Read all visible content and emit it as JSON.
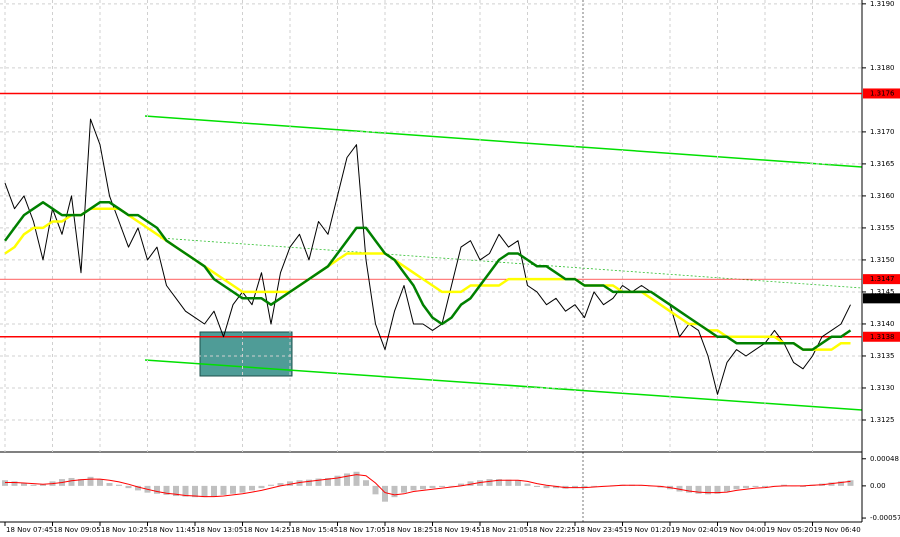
{
  "chart_data": [
    {
      "type": "line",
      "categories": [
        "18 Nov 07:45",
        null,
        null,
        null,
        null,
        "18 Nov 09:05",
        null,
        null,
        null,
        null,
        "18 Nov 10:25",
        null,
        null,
        null,
        null,
        "18 Nov 11:45",
        null,
        null,
        null,
        null,
        "18 Nov 13:05",
        null,
        null,
        null,
        null,
        "18 Nov 14:25",
        null,
        null,
        null,
        null,
        "18 Nov 15:45",
        null,
        null,
        null,
        null,
        "18 Nov 17:05",
        null,
        null,
        null,
        null,
        "18 Nov 18:25",
        null,
        null,
        null,
        null,
        "18 Nov 19:45",
        null,
        null,
        null,
        null,
        "18 Nov 21:05",
        null,
        null,
        null,
        null,
        "18 Nov 22:25",
        null,
        null,
        null,
        null,
        "18 Nov 23:45",
        null,
        null,
        null,
        null,
        "19 Nov 01:20",
        null,
        null,
        null,
        null,
        "19 Nov 02:40",
        null,
        null,
        null,
        null,
        "19 Nov 04:00",
        null,
        null,
        null,
        null,
        "19 Nov 05:20",
        null,
        null,
        null,
        null,
        "19 Nov 06:40",
        null,
        null,
        null,
        null
      ],
      "series": [
        {
          "color": "#000000",
          "width": 1,
          "values": [
            1.3162,
            1.3158,
            1.316,
            1.3156,
            1.315,
            1.3158,
            1.3154,
            1.316,
            1.3148,
            1.3172,
            1.3168,
            1.316,
            1.3156,
            1.3152,
            1.3155,
            1.315,
            1.3152,
            1.3146,
            1.3144,
            1.3142,
            1.3141,
            1.314,
            1.3142,
            1.3138,
            1.3143,
            1.3145,
            1.3143,
            1.3148,
            1.314,
            1.3148,
            1.3152,
            1.3154,
            1.315,
            1.3156,
            1.3154,
            1.316,
            1.3166,
            1.3168,
            1.315,
            1.314,
            1.3136,
            1.3142,
            1.3146,
            1.314,
            1.314,
            1.3139,
            1.314,
            1.3146,
            1.3152,
            1.3153,
            1.315,
            1.3151,
            1.3154,
            1.3152,
            1.3153,
            1.3146,
            1.3145,
            1.3143,
            1.3144,
            1.3142,
            1.3143,
            1.3141,
            1.3145,
            1.3143,
            1.3144,
            1.3146,
            1.3145,
            1.3146,
            1.3145,
            1.3144,
            1.3143,
            1.3138,
            1.314,
            1.3139,
            1.3135,
            1.3129,
            1.3134,
            1.3136,
            1.3135,
            1.3136,
            1.3137,
            1.3139,
            1.3137,
            1.3134,
            1.3133,
            1.3135,
            1.3138,
            1.3139,
            1.314,
            1.3143
          ]
        },
        {
          "color": "#ffff00",
          "width": 2.5,
          "values": [
            1.3151,
            1.3152,
            1.3154,
            1.3155,
            1.3155,
            1.3156,
            1.3156,
            1.3157,
            1.3157,
            1.3158,
            1.3158,
            1.3158,
            1.3158,
            1.3157,
            1.3156,
            1.3155,
            1.3154,
            1.3153,
            1.3152,
            1.3151,
            1.315,
            1.3149,
            1.3148,
            1.3147,
            1.3146,
            1.3145,
            1.3145,
            1.3145,
            1.3145,
            1.3145,
            1.3145,
            1.3146,
            1.3147,
            1.3148,
            1.3149,
            1.315,
            1.3151,
            1.3151,
            1.3151,
            1.3151,
            1.3151,
            1.315,
            1.3149,
            1.3148,
            1.3147,
            1.3146,
            1.3145,
            1.3145,
            1.3145,
            1.3146,
            1.3146,
            1.3146,
            1.3146,
            1.3147,
            1.3147,
            1.3147,
            1.3147,
            1.3147,
            1.3147,
            1.3147,
            1.3147,
            1.3146,
            1.3146,
            1.3146,
            1.3146,
            1.3145,
            1.3145,
            1.3145,
            1.3144,
            1.3143,
            1.3142,
            1.3141,
            1.314,
            1.314,
            1.3139,
            1.3139,
            1.3138,
            1.3138,
            1.3138,
            1.3138,
            1.3138,
            1.3138,
            1.3137,
            1.3137,
            1.3136,
            1.3136,
            1.3136,
            1.3136,
            1.3137,
            1.3137
          ]
        },
        {
          "color": "#008000",
          "width": 2.5,
          "values": [
            1.3153,
            1.3155,
            1.3157,
            1.3158,
            1.3159,
            1.3158,
            1.3157,
            1.3157,
            1.3157,
            1.3158,
            1.3159,
            1.3159,
            1.3158,
            1.3157,
            1.3157,
            1.3156,
            1.3155,
            1.3153,
            1.3152,
            1.3151,
            1.315,
            1.3149,
            1.3147,
            1.3146,
            1.3145,
            1.3144,
            1.3144,
            1.3144,
            1.3143,
            1.3144,
            1.3145,
            1.3146,
            1.3147,
            1.3148,
            1.3149,
            1.3151,
            1.3153,
            1.3155,
            1.3155,
            1.3153,
            1.3151,
            1.315,
            1.3148,
            1.3146,
            1.3143,
            1.3141,
            1.314,
            1.3141,
            1.3143,
            1.3144,
            1.3146,
            1.3148,
            1.315,
            1.3151,
            1.3151,
            1.315,
            1.3149,
            1.3149,
            1.3148,
            1.3147,
            1.3147,
            1.3146,
            1.3146,
            1.3146,
            1.3145,
            1.3145,
            1.3145,
            1.3145,
            1.3145,
            1.3144,
            1.3143,
            1.3142,
            1.3141,
            1.314,
            1.3139,
            1.3138,
            1.3138,
            1.3137,
            1.3137,
            1.3137,
            1.3137,
            1.3137,
            1.3137,
            1.3137,
            1.3136,
            1.3136,
            1.3137,
            1.3138,
            1.3138,
            1.3139
          ]
        }
      ],
      "ylim": [
        1.312,
        1.31906
      ],
      "yticks": [
        {
          "value": 1.319,
          "label": "1.3190"
        },
        {
          "value": 1.318,
          "label": "1.3180"
        },
        {
          "value": 1.317,
          "label": "1.3170"
        },
        1.3165,
        {
          "value": 1.316,
          "label": "1.3160"
        },
        1.3155,
        {
          "value": 1.315,
          "label": "1.3150"
        },
        1.3145,
        {
          "value": 1.314,
          "label": "1.3140"
        },
        1.3135,
        {
          "value": 1.313,
          "label": "1.3130"
        },
        1.3125
      ],
      "grid": true,
      "levels": [
        {
          "value": 1.3176,
          "color": "#ff0000",
          "width": 1.5
        },
        {
          "value": 1.3147,
          "color": "#ff0000",
          "width": 0.6
        },
        {
          "value": 1.3138,
          "color": "#ff0000",
          "width": 1.5
        }
      ],
      "current_price": 1.3144
    },
    {
      "type": "bar",
      "color": "#c0c0c0",
      "values": [
        0.0001,
        8e-05,
        5e-05,
        2e-05,
        3e-05,
        8e-05,
        0.00012,
        0.00014,
        0.00012,
        0.00016,
        0.00012,
        5e-05,
        2e-05,
        -4e-05,
        -8e-05,
        -0.00012,
        -0.00014,
        -0.00016,
        -0.00018,
        -0.00019,
        -0.0002,
        -0.0002,
        -0.00019,
        -0.00016,
        -0.00014,
        -0.00012,
        -8e-05,
        -4e-05,
        2e-05,
        5e-05,
        8e-05,
        0.0001,
        0.00011,
        0.00013,
        0.00014,
        0.00018,
        0.00022,
        0.00025,
        0.0001,
        -0.00015,
        -0.00028,
        -0.0002,
        -0.00012,
        -8e-05,
        -6e-05,
        -4e-05,
        -2e-05,
        0,
        4e-05,
        8e-05,
        0.0001,
        0.00012,
        0.00012,
        0.00011,
        0.0001,
        4e-05,
        -2e-05,
        -4e-05,
        -4e-05,
        -5e-05,
        -4e-05,
        -3e-05,
        -1e-05,
        0,
        1e-05,
        2e-05,
        2e-05,
        1e-05,
        0,
        -3e-05,
        -6e-05,
        -0.0001,
        -0.00012,
        -0.00014,
        -0.00015,
        -0.00014,
        -0.0001,
        -6e-05,
        -4e-05,
        -2e-05,
        -2e-05,
        0,
        2e-05,
        0,
        -2e-05,
        2e-05,
        4e-05,
        6e-05,
        8e-05,
        0.0001
      ],
      "signal": {
        "color": "#ff0000",
        "values": [
          6e-05,
          6e-05,
          5e-05,
          4e-05,
          3e-05,
          4e-05,
          6e-05,
          9e-05,
          0.00011,
          0.00012,
          0.00012,
          0.0001,
          7e-05,
          3e-05,
          -2e-05,
          -6e-05,
          -0.0001,
          -0.00013,
          -0.00015,
          -0.00017,
          -0.00018,
          -0.00019,
          -0.00019,
          -0.00018,
          -0.00016,
          -0.00014,
          -0.00011,
          -8e-05,
          -4e-05,
          0,
          3e-05,
          6e-05,
          8e-05,
          0.0001,
          0.00012,
          0.00014,
          0.00017,
          0.0002,
          0.00018,
          5e-05,
          -0.00012,
          -0.00016,
          -0.00014,
          -0.0001,
          -8e-05,
          -6e-05,
          -4e-05,
          -2e-05,
          0,
          3e-05,
          6e-05,
          8e-05,
          0.0001,
          0.0001,
          0.0001,
          8e-05,
          4e-05,
          1e-05,
          -1e-05,
          -3e-05,
          -3e-05,
          -3e-05,
          -2e-05,
          -1e-05,
          0,
          1e-05,
          1e-05,
          1e-05,
          0,
          -1e-05,
          -3e-05,
          -6e-05,
          -9e-05,
          -0.00011,
          -0.00012,
          -0.00012,
          -0.00011,
          -8e-05,
          -6e-05,
          -4e-05,
          -3e-05,
          -1e-05,
          0,
          0,
          0,
          1e-05,
          2e-05,
          4e-05,
          6e-05,
          8e-05
        ]
      },
      "ylim": [
        -0.00064,
        0.0006
      ],
      "yticks": [
        0.00048,
        {
          "value": 0,
          "label": "0.00"
        },
        -0.00057
      ]
    }
  ]
}
